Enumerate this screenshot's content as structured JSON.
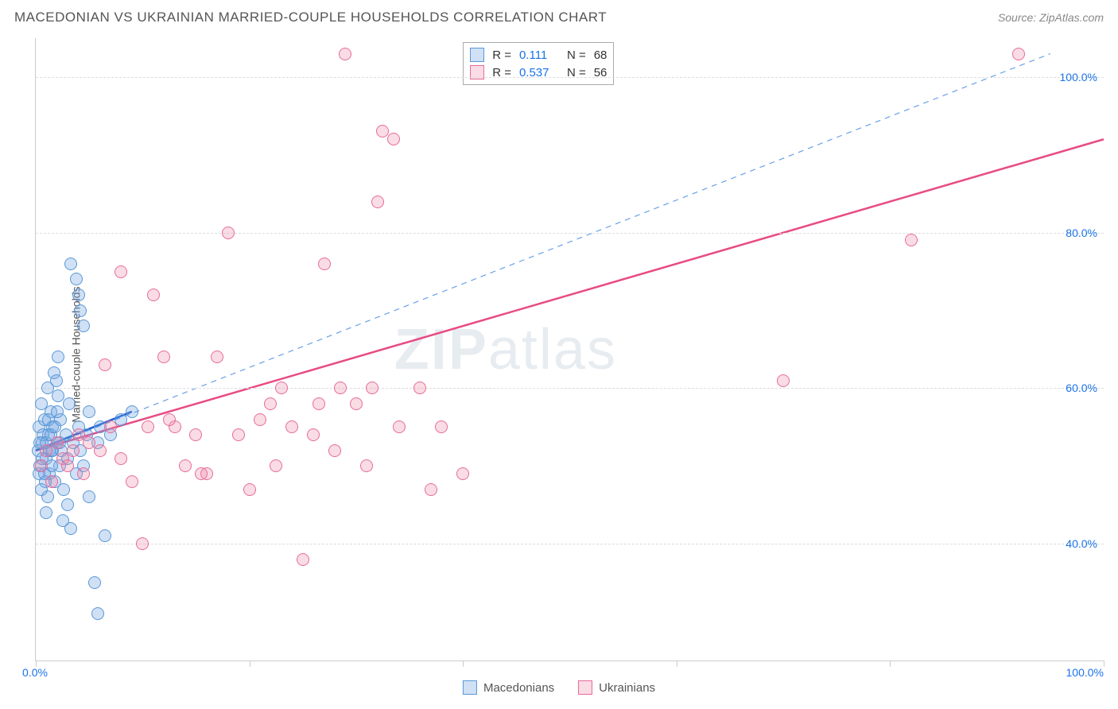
{
  "title": "MACEDONIAN VS UKRAINIAN MARRIED-COUPLE HOUSEHOLDS CORRELATION CHART",
  "source": "Source: ZipAtlas.com",
  "y_axis_label": "Married-couple Households",
  "watermark": {
    "bold": "ZIP",
    "rest": "atlas"
  },
  "colors": {
    "blue_fill": "rgba(120,170,230,0.35)",
    "blue_stroke": "#5a97d6",
    "pink_fill": "rgba(240,140,170,0.30)",
    "pink_stroke": "#e76b99",
    "trend_blue": "#1a5bd0",
    "trend_pink": "#e84b84",
    "ref_dash": "#6aa0e8",
    "grid": "#dddddd",
    "axis": "#cccccc",
    "title_color": "#555555",
    "tick_blue": "#1a73e8"
  },
  "chart": {
    "type": "scatter",
    "xlim": [
      0,
      100
    ],
    "ylim": [
      25,
      105
    ],
    "y_gridlines": [
      40,
      60,
      80,
      100
    ],
    "y_tick_labels": [
      "40.0%",
      "60.0%",
      "80.0%",
      "100.0%"
    ],
    "x_ticks": [
      0,
      20,
      40,
      60,
      80,
      100
    ],
    "x_tick_labels": {
      "left": "0.0%",
      "right": "100.0%"
    },
    "stats_box": {
      "rows": [
        {
          "swatch": "blue",
          "r_label": "R =",
          "r": "0.111",
          "n_label": "N =",
          "n": "68"
        },
        {
          "swatch": "pink",
          "r_label": "R =",
          "r": "0.537",
          "n_label": "N =",
          "n": "56"
        }
      ]
    },
    "legend_bottom": [
      {
        "swatch": "blue",
        "label": "Macedonians"
      },
      {
        "swatch": "pink",
        "label": "Ukrainians"
      }
    ],
    "trend_lines": {
      "blue": {
        "x1": 0,
        "y1": 52,
        "x2": 9,
        "y2": 57,
        "dash": false,
        "width": 2.5
      },
      "pink": {
        "x1": 0,
        "y1": 52,
        "x2": 100,
        "y2": 92,
        "dash": false,
        "width": 2.5
      },
      "ref": {
        "x1": 2,
        "y1": 53,
        "x2": 95,
        "y2": 103,
        "dash": true,
        "width": 1.2
      }
    },
    "series": {
      "blue": [
        [
          0.2,
          52
        ],
        [
          0.3,
          55
        ],
        [
          0.4,
          50
        ],
        [
          0.5,
          58
        ],
        [
          0.6,
          53
        ],
        [
          0.8,
          56
        ],
        [
          1.0,
          51
        ],
        [
          1.1,
          60
        ],
        [
          1.2,
          54
        ],
        [
          1.3,
          49
        ],
        [
          1.4,
          57
        ],
        [
          1.5,
          52
        ],
        [
          1.6,
          55
        ],
        [
          1.8,
          48
        ],
        [
          2.0,
          53
        ],
        [
          2.1,
          59
        ],
        [
          2.2,
          50
        ],
        [
          2.3,
          56
        ],
        [
          2.4,
          52
        ],
        [
          2.6,
          47
        ],
        [
          2.8,
          54
        ],
        [
          3.0,
          51
        ],
        [
          3.1,
          58
        ],
        [
          3.3,
          42
        ],
        [
          3.3,
          76
        ],
        [
          3.5,
          53
        ],
        [
          3.8,
          49
        ],
        [
          3.8,
          74
        ],
        [
          4.0,
          55
        ],
        [
          4.0,
          72
        ],
        [
          4.2,
          70
        ],
        [
          4.2,
          52
        ],
        [
          4.5,
          68
        ],
        [
          4.5,
          50
        ],
        [
          4.8,
          54
        ],
        [
          5.0,
          57
        ],
        [
          5.0,
          46
        ],
        [
          5.5,
          35
        ],
        [
          5.8,
          53
        ],
        [
          5.8,
          31
        ],
        [
          6.0,
          55
        ],
        [
          6.5,
          41
        ],
        [
          7.0,
          54
        ],
        [
          8.0,
          56
        ],
        [
          9.0,
          57
        ],
        [
          3.0,
          45
        ],
        [
          2.5,
          43
        ],
        [
          1.7,
          62
        ],
        [
          1.9,
          61
        ],
        [
          2.1,
          64
        ],
        [
          0.7,
          54
        ],
        [
          0.9,
          48
        ],
        [
          1.1,
          46
        ],
        [
          1.3,
          52
        ],
        [
          1.5,
          50
        ],
        [
          1.0,
          44
        ],
        [
          0.5,
          47
        ],
        [
          0.3,
          49
        ],
        [
          0.4,
          53
        ],
        [
          0.6,
          51
        ],
        [
          0.8,
          49
        ],
        [
          1.0,
          53
        ],
        [
          1.2,
          56
        ],
        [
          1.4,
          54
        ],
        [
          1.6,
          52
        ],
        [
          1.8,
          55
        ],
        [
          2.0,
          57
        ],
        [
          2.2,
          53
        ]
      ],
      "pink": [
        [
          0.5,
          50
        ],
        [
          1.0,
          52
        ],
        [
          1.5,
          48
        ],
        [
          2.0,
          53
        ],
        [
          2.5,
          51
        ],
        [
          3.0,
          50
        ],
        [
          3.5,
          52
        ],
        [
          4.0,
          54
        ],
        [
          5.0,
          53
        ],
        [
          6.0,
          52
        ],
        [
          7.0,
          55
        ],
        [
          8.0,
          51
        ],
        [
          8.0,
          75
        ],
        [
          9.0,
          48
        ],
        [
          10.0,
          40
        ],
        [
          11.0,
          72
        ],
        [
          12.0,
          64
        ],
        [
          13.0,
          55
        ],
        [
          14.0,
          50
        ],
        [
          15.0,
          54
        ],
        [
          16.0,
          49
        ],
        [
          17.0,
          64
        ],
        [
          18.0,
          80
        ],
        [
          19.0,
          54
        ],
        [
          20.0,
          47
        ],
        [
          21.0,
          56
        ],
        [
          22.0,
          58
        ],
        [
          23.0,
          60
        ],
        [
          24.0,
          55
        ],
        [
          25.0,
          38
        ],
        [
          26.0,
          54
        ],
        [
          27.0,
          76
        ],
        [
          28.0,
          52
        ],
        [
          29.0,
          103
        ],
        [
          30.0,
          58
        ],
        [
          31.0,
          50
        ],
        [
          32.0,
          84
        ],
        [
          32.5,
          93
        ],
        [
          33.5,
          92
        ],
        [
          34.0,
          55
        ],
        [
          36.0,
          60
        ],
        [
          37.0,
          47
        ],
        [
          38.0,
          55
        ],
        [
          40.0,
          49
        ],
        [
          31.5,
          60
        ],
        [
          28.5,
          60
        ],
        [
          26.5,
          58
        ],
        [
          22.5,
          50
        ],
        [
          15.5,
          49
        ],
        [
          12.5,
          56
        ],
        [
          10.5,
          55
        ],
        [
          70.0,
          61
        ],
        [
          82.0,
          79
        ],
        [
          92.0,
          103
        ],
        [
          6.5,
          63
        ],
        [
          4.5,
          49
        ]
      ]
    }
  }
}
